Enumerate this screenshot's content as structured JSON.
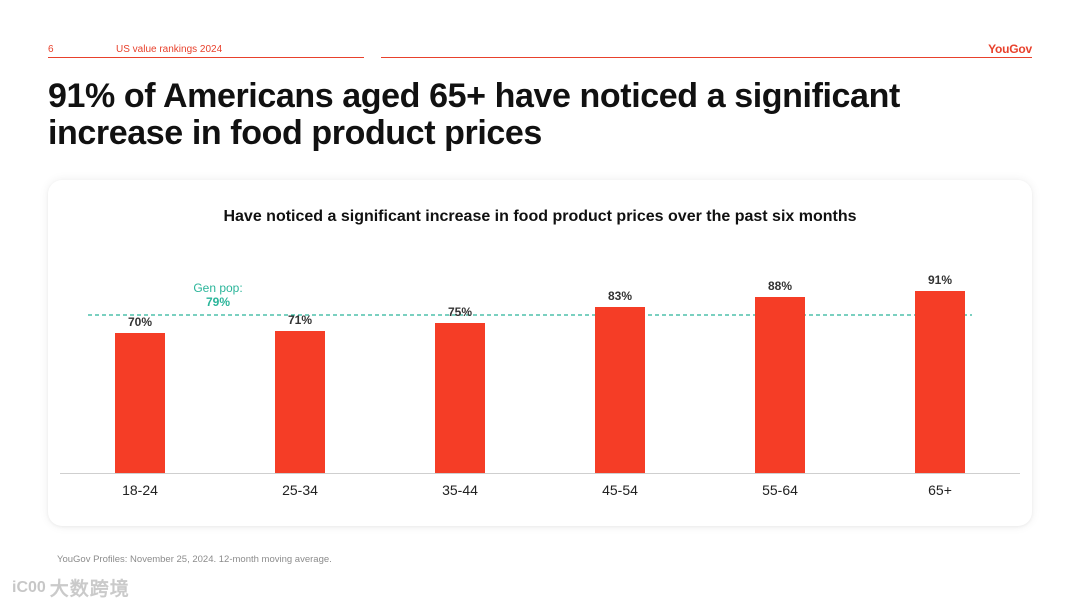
{
  "header": {
    "page_number": "6",
    "section": "US value rankings 2024",
    "brand": "YouGov"
  },
  "headline": "91% of Americans aged 65+ have noticed a significant increase in food product prices",
  "footnote": "YouGov Profiles: November 25, 2024. 12-month moving average.",
  "watermark": {
    "mark": "iC00",
    "text": "大数跨境"
  },
  "colors": {
    "accent": "#e8412c",
    "bar": "#f53d26",
    "reference_line": "#2bb59a",
    "text": "#111111"
  },
  "chart_data": {
    "type": "bar",
    "title": "Have noticed a significant increase in food product prices over the past six months",
    "categories": [
      "18-24",
      "25-34",
      "35-44",
      "45-54",
      "55-64",
      "65+"
    ],
    "values": [
      70,
      71,
      75,
      83,
      88,
      91
    ],
    "value_labels": [
      "70%",
      "71%",
      "75%",
      "83%",
      "88%",
      "91%"
    ],
    "reference_line": {
      "label": "Gen pop:",
      "value_label": "79%",
      "value": 79,
      "style": "dashed"
    },
    "ylim": [
      0,
      100
    ],
    "xlabel": "",
    "ylabel": "",
    "grid": false,
    "legend": "none"
  }
}
